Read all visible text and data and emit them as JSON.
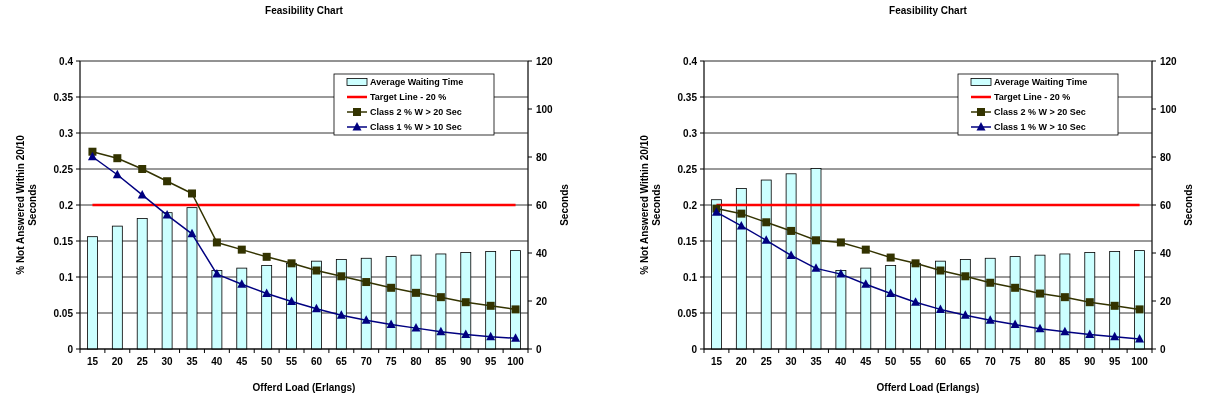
{
  "chart_data": [
    {
      "type": "bar",
      "title": "Feasibility Chart",
      "xlabel": "Offerd Load (Erlangs)",
      "ylabel": "% Not Answered Within 20/10 Seconds",
      "y2label": "Seconds",
      "categories": [
        "15",
        "20",
        "25",
        "30",
        "35",
        "40",
        "45",
        "50",
        "55",
        "60",
        "65",
        "70",
        "75",
        "80",
        "85",
        "90",
        "95",
        "100"
      ],
      "ylim": [
        0,
        0.4
      ],
      "yticks": [
        0,
        0.05,
        0.1,
        0.15,
        0.2,
        0.25,
        0.3,
        0.35,
        0.4
      ],
      "y2lim": [
        0,
        120
      ],
      "y2ticks": [
        0,
        20,
        40,
        60,
        80,
        100,
        120
      ],
      "grid": "y",
      "legend": "top right",
      "series": [
        {
          "name": "Average Waiting Time",
          "axis": "y2",
          "color": "#ccffff",
          "values": [
            46.8,
            51.2,
            54.4,
            56.8,
            58.9,
            32.7,
            33.7,
            34.8,
            35.7,
            36.6,
            37.3,
            37.8,
            38.5,
            39.1,
            39.6,
            40.2,
            40.6,
            41.0
          ]
        },
        {
          "name": "Target Line - 20 %",
          "type": "line",
          "marker": "none",
          "color": "#ff0000",
          "values": [
            0.2,
            0.2,
            0.2,
            0.2,
            0.2,
            0.2,
            0.2,
            0.2,
            0.2,
            0.2,
            0.2,
            0.2,
            0.2,
            0.2,
            0.2,
            0.2,
            0.2,
            0.2
          ]
        },
        {
          "name": "Class 2 % W > 20 Sec",
          "type": "line",
          "marker": "square",
          "color": "#333300",
          "values": [
            0.274,
            0.265,
            0.25,
            0.233,
            0.216,
            0.148,
            0.138,
            0.128,
            0.119,
            0.109,
            0.101,
            0.093,
            0.085,
            0.078,
            0.072,
            0.065,
            0.06,
            0.055
          ]
        },
        {
          "name": "Class 1 % W > 10 Sec",
          "type": "line",
          "marker": "triangle",
          "color": "#000080",
          "values": [
            0.267,
            0.242,
            0.214,
            0.186,
            0.16,
            0.104,
            0.09,
            0.077,
            0.066,
            0.056,
            0.047,
            0.04,
            0.034,
            0.029,
            0.024,
            0.02,
            0.017,
            0.015
          ]
        }
      ]
    },
    {
      "type": "bar",
      "title": "Feasibility Chart",
      "xlabel": "Offerd Load (Erlangs)",
      "ylabel": "% Not Answered Within 20/10 Seconds",
      "y2label": "Seconds",
      "categories": [
        "15",
        "20",
        "25",
        "30",
        "35",
        "40",
        "45",
        "50",
        "55",
        "60",
        "65",
        "70",
        "75",
        "80",
        "85",
        "90",
        "95",
        "100"
      ],
      "ylim": [
        0,
        0.4
      ],
      "yticks": [
        0,
        0.05,
        0.1,
        0.15,
        0.2,
        0.25,
        0.3,
        0.35,
        0.4
      ],
      "y2lim": [
        0,
        120
      ],
      "y2ticks": [
        0,
        20,
        40,
        60,
        80,
        100,
        120
      ],
      "grid": "y",
      "legend": "top right",
      "series": [
        {
          "name": "Average Waiting Time",
          "axis": "y2",
          "color": "#ccffff",
          "values": [
            62.2,
            66.9,
            70.4,
            73.0,
            75.2,
            32.7,
            33.7,
            34.8,
            35.7,
            36.6,
            37.3,
            37.8,
            38.5,
            39.1,
            39.6,
            40.2,
            40.6,
            41.0
          ]
        },
        {
          "name": "Target Line - 20 %",
          "type": "line",
          "marker": "none",
          "color": "#ff0000",
          "values": [
            0.2,
            0.2,
            0.2,
            0.2,
            0.2,
            0.2,
            0.2,
            0.2,
            0.2,
            0.2,
            0.2,
            0.2,
            0.2,
            0.2,
            0.2,
            0.2,
            0.2,
            0.2
          ]
        },
        {
          "name": "Class 2 % W > 20 Sec",
          "type": "line",
          "marker": "square",
          "color": "#333300",
          "values": [
            0.195,
            0.188,
            0.176,
            0.164,
            0.151,
            0.148,
            0.138,
            0.127,
            0.119,
            0.109,
            0.101,
            0.092,
            0.085,
            0.077,
            0.072,
            0.065,
            0.06,
            0.055
          ]
        },
        {
          "name": "Class 1 % W > 10 Sec",
          "type": "line",
          "marker": "triangle",
          "color": "#000080",
          "values": [
            0.19,
            0.171,
            0.151,
            0.13,
            0.112,
            0.104,
            0.09,
            0.077,
            0.065,
            0.055,
            0.047,
            0.04,
            0.034,
            0.028,
            0.024,
            0.02,
            0.017,
            0.014
          ]
        }
      ]
    }
  ]
}
